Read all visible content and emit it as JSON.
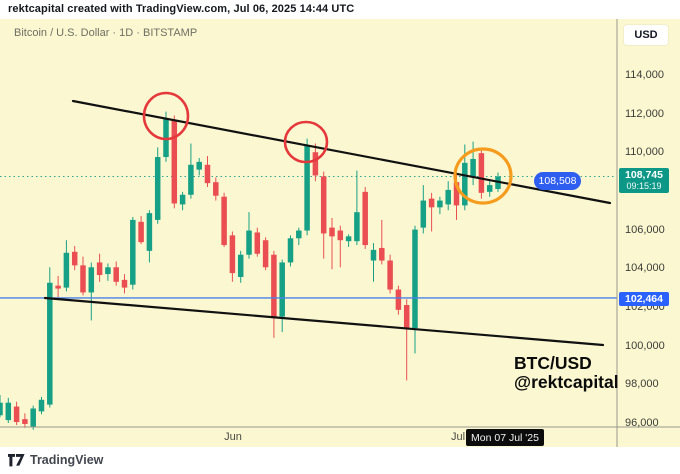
{
  "header": {
    "attribution": "rektcapital created with TradingView.com, Jul 06, 2025 14:44 UTC"
  },
  "chart": {
    "symbol_title": "Bitcoin / U.S. Dollar · 1D · BITSTAMP",
    "watermark": {
      "line1": "BTC/USD",
      "line2": "@rektcapital"
    },
    "price_axis": {
      "currency": "USD",
      "labels": [
        {
          "text": "114,000",
          "value": 114000
        },
        {
          "text": "112,000",
          "value": 112000
        },
        {
          "text": "110,000",
          "value": 110000
        },
        {
          "text": "106,000",
          "value": 106000
        },
        {
          "text": "104,000",
          "value": 104000
        },
        {
          "text": "102,000",
          "value": 102000
        },
        {
          "text": "100,000",
          "value": 100000
        },
        {
          "text": "98,000",
          "value": 98000
        },
        {
          "text": "96,000",
          "value": 96000
        }
      ]
    },
    "current_price_label": {
      "price": "108,745",
      "countdown": "09:15:19",
      "value": 108745
    },
    "blue_line_label": {
      "price": "102,464",
      "value": 102464
    },
    "ray_label": {
      "price": "108,508",
      "value": 108508
    },
    "time_axis": {
      "labels": [
        {
          "text": "Jun",
          "x": 233
        },
        {
          "text": "Jul",
          "x": 458
        }
      ],
      "crosshair_tooltip": "Mon 07 Jul '25"
    },
    "colors": {
      "background": "#FBF8D1",
      "up": "#16A085",
      "down": "#EA4E52",
      "current_price": "#0d9786",
      "drawing_blue": "#2962FF",
      "blue_line": "#4A80E9",
      "trendline": "#111111",
      "circle_red": "#E4383C",
      "circle_orange": "#F59B1E",
      "axis_line": "#9a988b"
    }
  },
  "chart_data": {
    "type": "candlestick",
    "title": "Bitcoin / U.S. Dollar · 1D · BITSTAMP",
    "symbol": "BTC/USD",
    "exchange": "BITSTAMP",
    "timeframe": "1D",
    "ylabel": "USD",
    "ylim": [
      95780,
      114900
    ],
    "y_tick_interval": 2000,
    "x_ticks": [
      "Jun",
      "Jul"
    ],
    "last_price": 108745,
    "last_bar_countdown": "09:15:19",
    "horizontal_line_price": 102464,
    "horizontal_ray_price": 108508,
    "candle_columns": [
      "open",
      "high",
      "low",
      "close"
    ],
    "candles": [
      [
        96400,
        97450,
        96300,
        97050
      ],
      [
        96150,
        97300,
        96000,
        97050
      ],
      [
        96850,
        97100,
        95900,
        96050
      ],
      [
        96200,
        96500,
        95750,
        95950
      ],
      [
        95800,
        96900,
        95650,
        96750
      ],
      [
        96600,
        97350,
        96450,
        97200
      ],
      [
        96950,
        104050,
        96800,
        103250
      ],
      [
        103100,
        103600,
        102500,
        102950
      ],
      [
        103000,
        105450,
        102800,
        104800
      ],
      [
        104850,
        105150,
        103900,
        104150
      ],
      [
        104150,
        104600,
        102600,
        102750
      ],
      [
        102750,
        104300,
        101300,
        104050
      ],
      [
        104300,
        104750,
        103300,
        103650
      ],
      [
        103700,
        104250,
        103350,
        104050
      ],
      [
        104050,
        104350,
        103100,
        103300
      ],
      [
        103400,
        103700,
        102700,
        103000
      ],
      [
        103150,
        106650,
        102900,
        106500
      ],
      [
        106400,
        106700,
        105250,
        105350
      ],
      [
        104900,
        107000,
        104300,
        106850
      ],
      [
        106500,
        110250,
        106300,
        109750
      ],
      [
        109750,
        112100,
        109500,
        111750
      ],
      [
        111650,
        111900,
        107100,
        107350
      ],
      [
        107300,
        107950,
        107000,
        107800
      ],
      [
        107800,
        110450,
        107600,
        109350
      ],
      [
        109100,
        109700,
        108800,
        109500
      ],
      [
        109350,
        109800,
        108200,
        108400
      ],
      [
        108450,
        108700,
        107500,
        107750
      ],
      [
        107700,
        107900,
        105100,
        105200
      ],
      [
        105700,
        105900,
        103300,
        103750
      ],
      [
        103550,
        104900,
        103250,
        104700
      ],
      [
        104700,
        106900,
        104500,
        105950
      ],
      [
        105850,
        106100,
        104600,
        104750
      ],
      [
        105450,
        105600,
        103900,
        104050
      ],
      [
        104700,
        104900,
        100400,
        101500
      ],
      [
        101500,
        104450,
        100700,
        104300
      ],
      [
        104300,
        105700,
        104100,
        105550
      ],
      [
        105550,
        106100,
        105200,
        105950
      ],
      [
        105950,
        110700,
        105700,
        110350
      ],
      [
        110000,
        110450,
        108500,
        108800
      ],
      [
        108750,
        109000,
        104500,
        105800
      ],
      [
        106100,
        106600,
        103950,
        105650
      ],
      [
        105950,
        106200,
        104050,
        105450
      ],
      [
        105400,
        105750,
        105100,
        105650
      ],
      [
        105400,
        109050,
        105200,
        106900
      ],
      [
        107950,
        108200,
        105000,
        105200
      ],
      [
        104400,
        105300,
        103300,
        104950
      ],
      [
        105050,
        106500,
        104200,
        104400
      ],
      [
        104400,
        104700,
        102700,
        102900
      ],
      [
        102900,
        103100,
        101600,
        101850
      ],
      [
        102100,
        102400,
        98200,
        100900
      ],
      [
        100900,
        106200,
        99600,
        106000
      ],
      [
        106100,
        108300,
        105800,
        107500
      ],
      [
        107600,
        107900,
        105900,
        107150
      ],
      [
        107150,
        107700,
        106800,
        107500
      ],
      [
        107300,
        108500,
        107000,
        108050
      ],
      [
        108450,
        109100,
        106500,
        107250
      ],
      [
        107250,
        110400,
        107000,
        109450
      ],
      [
        108700,
        110550,
        108300,
        109650
      ],
      [
        109950,
        110100,
        107600,
        107900
      ],
      [
        107950,
        108500,
        107700,
        108300
      ],
      [
        108100,
        108950,
        107950,
        108745
      ]
    ],
    "drawings": {
      "trendlines": [
        {
          "name": "upper-trendline",
          "x1": 73,
          "y1": 101,
          "x2": 610,
          "y2": 203
        },
        {
          "name": "lower-trendline",
          "x1": 45,
          "y1": 298,
          "x2": 603,
          "y2": 345
        }
      ],
      "circles": [
        {
          "name": "red-circle-1",
          "cx": 166,
          "cy": 116,
          "rx": 22,
          "ry": 23,
          "color": "#E4383C",
          "stroke": 2.6
        },
        {
          "name": "red-circle-2",
          "cx": 306,
          "cy": 142,
          "rx": 21,
          "ry": 20,
          "color": "#E4383C",
          "stroke": 2.6
        },
        {
          "name": "orange-circle",
          "cx": 483,
          "cy": 176,
          "rx": 28,
          "ry": 27,
          "color": "#F59B1E",
          "stroke": 3.2
        }
      ]
    }
  },
  "footer": {
    "logo_text": "TradingView"
  }
}
